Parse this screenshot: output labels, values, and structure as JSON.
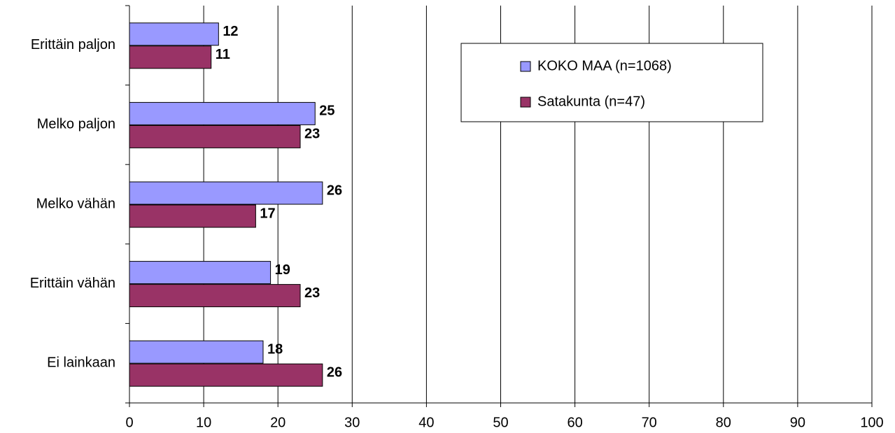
{
  "chart_data": {
    "type": "bar",
    "orientation": "horizontal",
    "categories": [
      "Erittäin paljon",
      "Melko paljon",
      "Melko vähän",
      "Erittäin vähän",
      "Ei lainkaan"
    ],
    "series": [
      {
        "name": "KOKO MAA (n=1068)",
        "color": "#9999ff",
        "values": [
          12,
          25,
          26,
          19,
          18
        ]
      },
      {
        "name": "Satakunta (n=47)",
        "color": "#993366",
        "values": [
          11,
          23,
          17,
          23,
          26
        ]
      }
    ],
    "xlim": [
      0,
      100
    ],
    "xticks": [
      0,
      10,
      20,
      30,
      40,
      50,
      60,
      70,
      80,
      90,
      100
    ],
    "grid": true,
    "legend": "upper right"
  }
}
